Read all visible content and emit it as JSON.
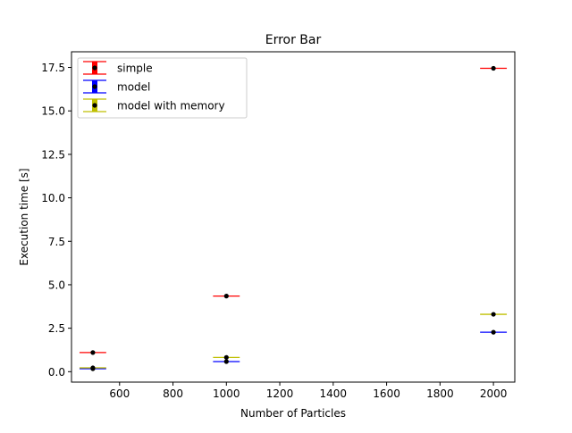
{
  "chart_data": {
    "type": "errorbar",
    "title": "Error Bar",
    "xlabel": "Number of Particles",
    "ylabel": "Execution time [s]",
    "xlim": [
      420,
      2080
    ],
    "ylim": [
      -0.6,
      18.4
    ],
    "xticks": [
      600,
      800,
      1000,
      1200,
      1400,
      1600,
      1800,
      2000
    ],
    "yticks": [
      0.0,
      2.5,
      5.0,
      7.5,
      10.0,
      12.5,
      15.0,
      17.5
    ],
    "xtick_labels": [
      "600",
      "800",
      "1000",
      "1200",
      "1400",
      "1600",
      "1800",
      "2000"
    ],
    "ytick_labels": [
      "0.0",
      "2.5",
      "5.0",
      "7.5",
      "10.0",
      "12.5",
      "15.0",
      "17.5"
    ],
    "legend_position": "upper left",
    "grid": false,
    "marker_color": "#000000",
    "series": [
      {
        "name": "simple",
        "color": "#ff0000",
        "x": [
          500,
          1000,
          2000
        ],
        "y": [
          1.1,
          4.35,
          17.45
        ],
        "xerr": 50
      },
      {
        "name": "model",
        "color": "#0000ff",
        "x": [
          500,
          1000,
          2000
        ],
        "y": [
          0.17,
          0.58,
          2.27
        ],
        "xerr": 50
      },
      {
        "name": "model with memory",
        "color": "#bfbf00",
        "x": [
          500,
          1000,
          2000
        ],
        "y": [
          0.22,
          0.82,
          3.3
        ],
        "xerr": 50
      }
    ]
  }
}
